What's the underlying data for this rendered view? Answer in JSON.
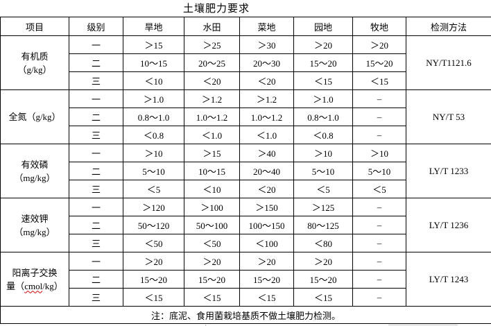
{
  "title": "土壤肥力要求",
  "table": {
    "headers": [
      "项目",
      "级别",
      "旱地",
      "水田",
      "菜地",
      "园地",
      "牧地",
      "检测方法"
    ],
    "groups": [
      {
        "item_lines": [
          "有机质",
          "（g/kg）"
        ],
        "method": "NY/T1121.6",
        "rows": [
          {
            "level": "一",
            "values": [
              "＞15",
              "＞25",
              "＞30",
              "＞20",
              "＞20"
            ]
          },
          {
            "level": "二",
            "values": [
              "10～15",
              "20～25",
              "20～30",
              "15～20",
              "15～20"
            ]
          },
          {
            "level": "三",
            "values": [
              "＜10",
              "＜20",
              "＜20",
              "＜15",
              "＜15"
            ]
          }
        ]
      },
      {
        "item_lines": [
          "全氮（g/kg）"
        ],
        "method": "NY/T 53",
        "rows": [
          {
            "level": "一",
            "values": [
              "＞1.0",
              "＞1.2",
              "＞1.2",
              "＞1.0",
              "–"
            ]
          },
          {
            "level": "二",
            "values": [
              "0.8～1.0",
              "1.0～1.2",
              "1.0～1.2",
              "0.8～1.0",
              "–"
            ]
          },
          {
            "level": "三",
            "values": [
              "＜0.8",
              "＜1.0",
              "＜1.0",
              "＜0.8",
              "–"
            ]
          }
        ]
      },
      {
        "item_lines": [
          "有效磷",
          "（mg/kg）"
        ],
        "method": "LY/T 1233",
        "rows": [
          {
            "level": "一",
            "values": [
              "＞10",
              "＞15",
              "＞40",
              "＞10",
              "＞10"
            ]
          },
          {
            "level": "二",
            "values": [
              "5～10",
              "10～15",
              "20～40",
              "5～10",
              "5～10"
            ]
          },
          {
            "level": "三",
            "values": [
              "＜5",
              "＜10",
              "＜20",
              "＜5",
              "＜5"
            ]
          }
        ]
      },
      {
        "item_lines": [
          "速效钾",
          "（mg/kg）"
        ],
        "method": "LY/T 1236",
        "rows": [
          {
            "level": "一",
            "values": [
              "＞120",
              "＞100",
              "＞150",
              "＞125",
              "–"
            ]
          },
          {
            "level": "二",
            "values": [
              "50～120",
              "50～100",
              "100～150",
              "80～125",
              "–"
            ]
          },
          {
            "level": "三",
            "values": [
              "＜50",
              "＜50",
              "＜100",
              "＜80",
              "–"
            ]
          }
        ]
      },
      {
        "item_lines": [
          "阳离子交换"
        ],
        "squiggle_line": {
          "pre": "量（",
          "mark": "cmol",
          "post": "/kg）"
        },
        "method": "LY/T 1243",
        "rows": [
          {
            "level": "一",
            "values": [
              "＞20",
              "＞20",
              "＞20",
              "＞20",
              "–"
            ]
          },
          {
            "level": "二",
            "values": [
              "15～20",
              "15～20",
              "15～20",
              "15～20",
              "–"
            ]
          },
          {
            "level": "三",
            "values": [
              "＜15",
              "＜15",
              "＜15",
              "＜15",
              "–"
            ]
          }
        ]
      }
    ],
    "note": "注：底泥、食用菌栽培基质不做土壤肥力检测。"
  }
}
